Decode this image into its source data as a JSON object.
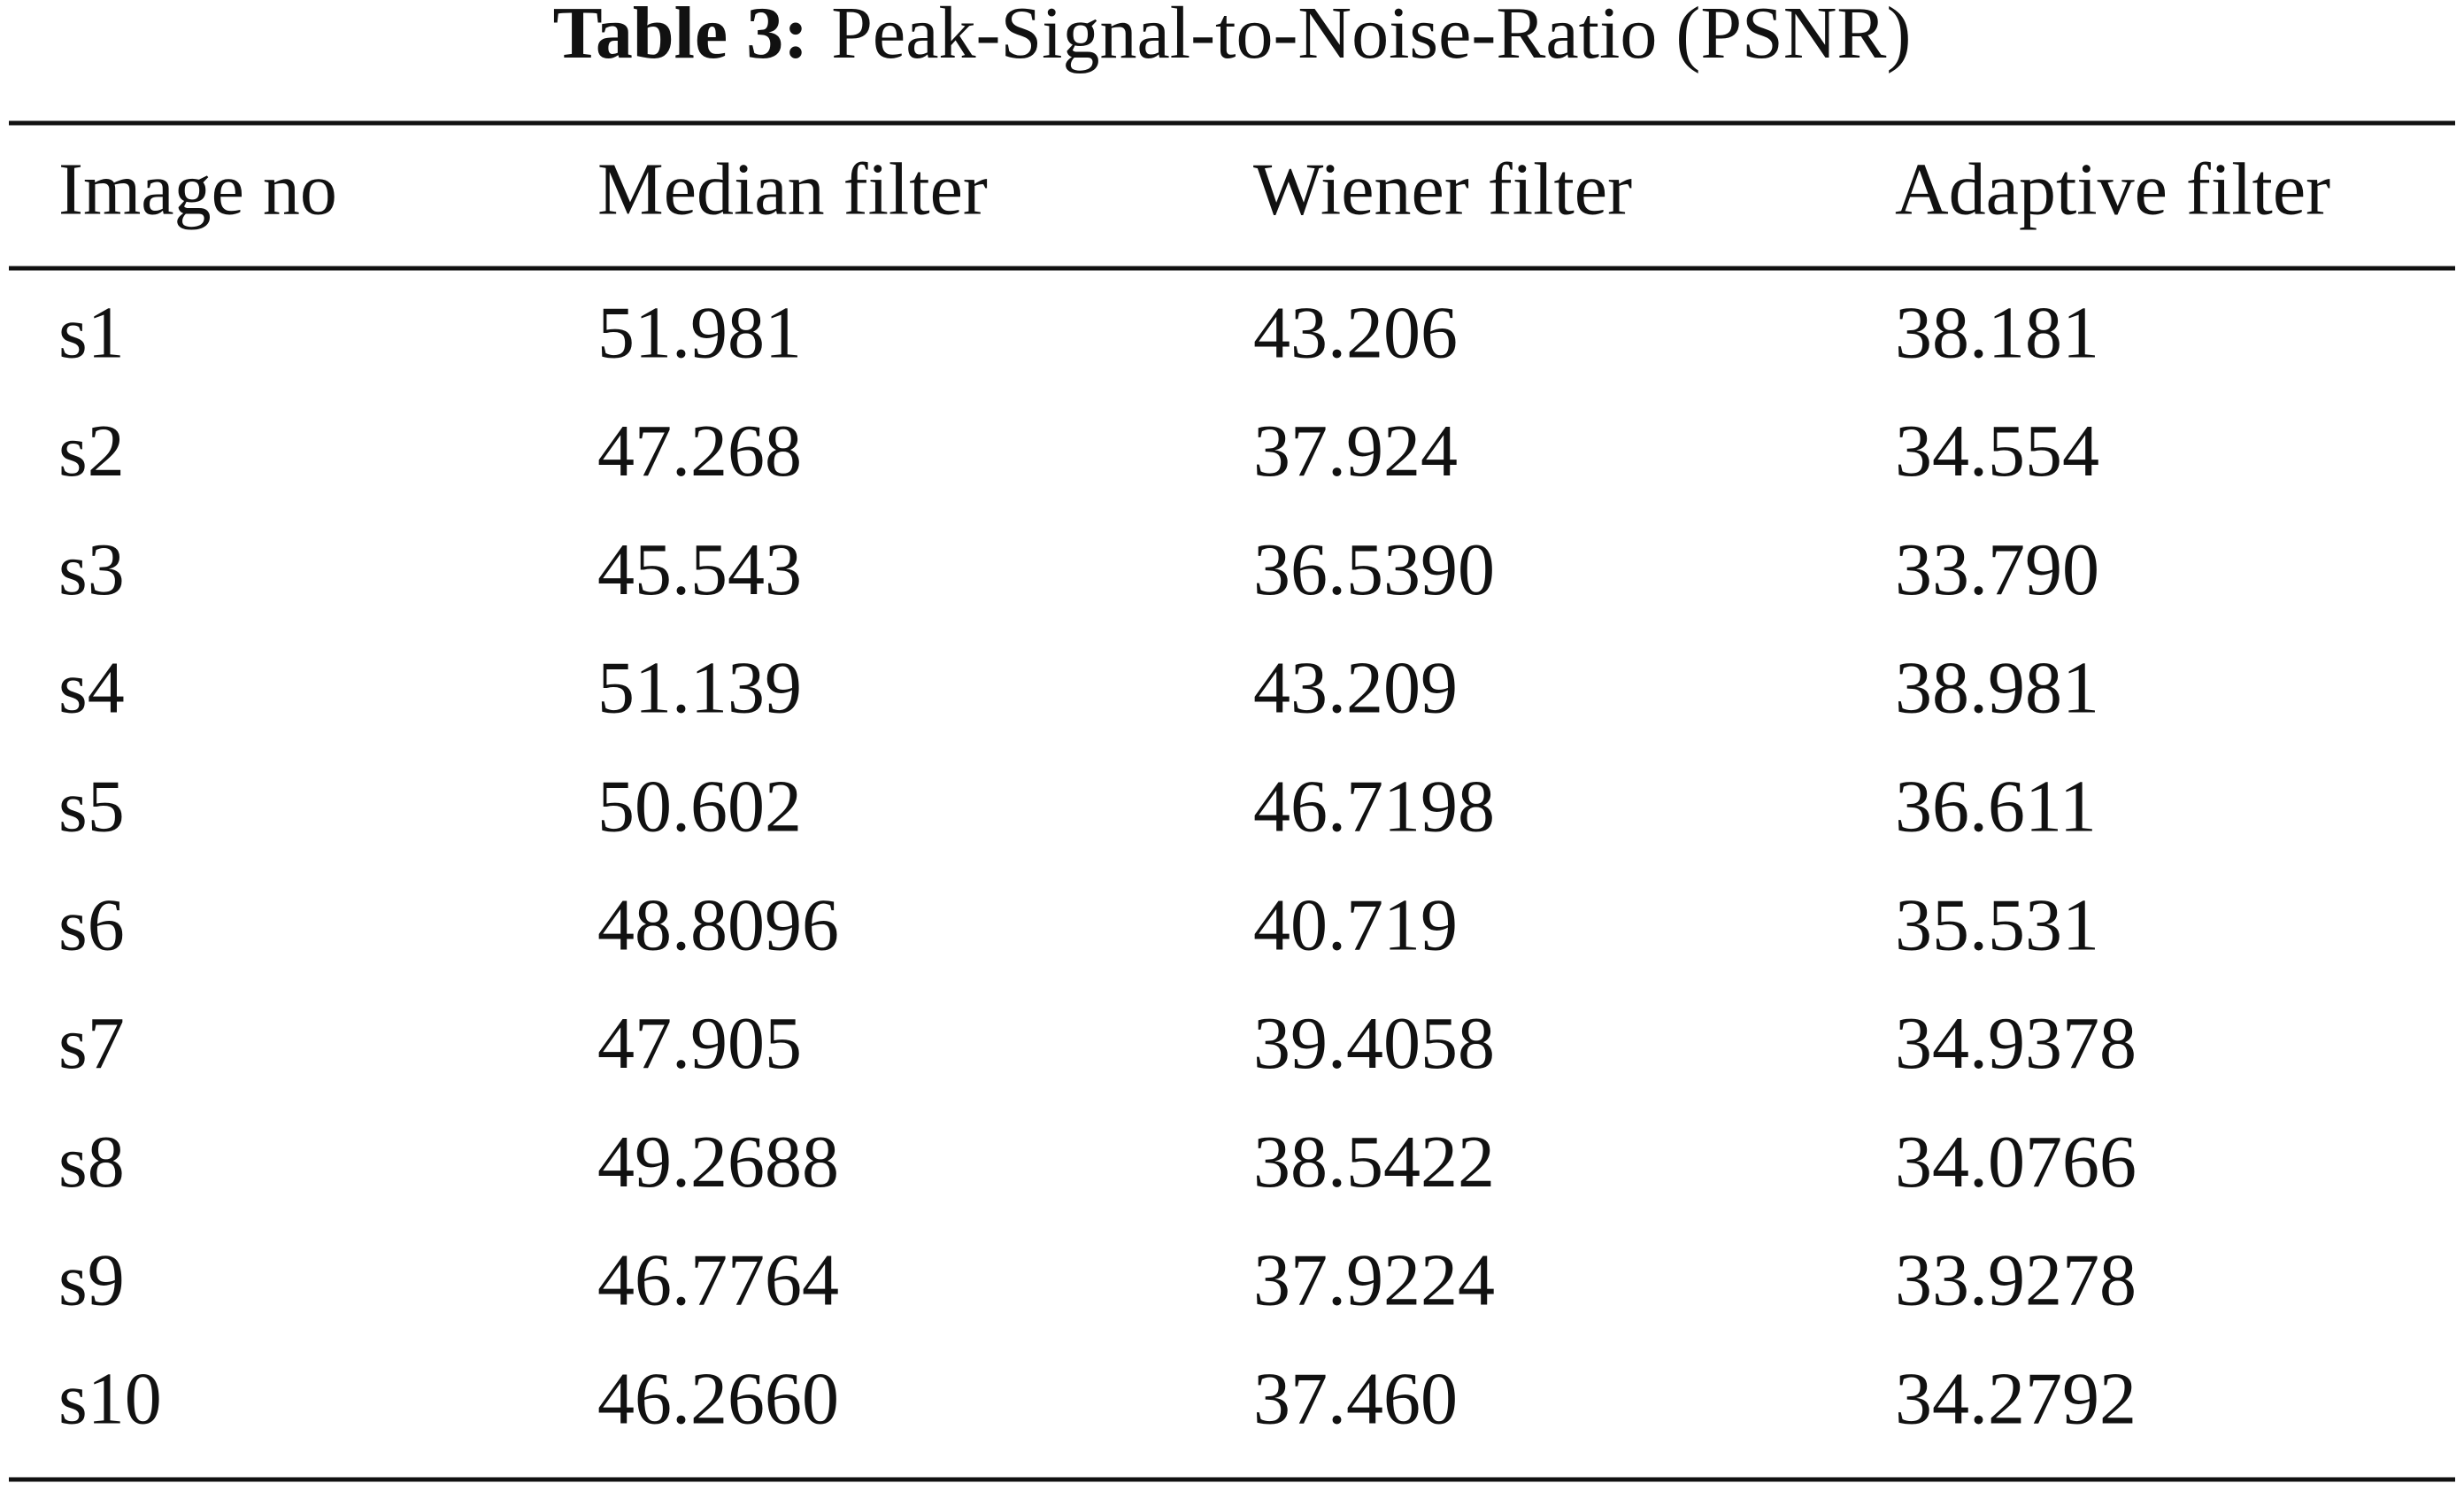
{
  "caption": {
    "label": "Table 3:",
    "title": "Peak-Signal-to-Noise-Ratio (PSNR)"
  },
  "table": {
    "header": [
      "Image no",
      "Median filter",
      "Wiener filter",
      "Adaptive filter"
    ],
    "rows": [
      [
        "s1",
        "51.981",
        "43.206",
        "38.181"
      ],
      [
        "s2",
        "47.268",
        "37.924",
        "34.554"
      ],
      [
        "s3",
        "45.543",
        "36.5390",
        "33.790"
      ],
      [
        "s4",
        "51.139",
        "43.209",
        "38.981"
      ],
      [
        "s5",
        "50.602",
        "46.7198",
        "36.611"
      ],
      [
        "s6",
        "48.8096",
        "40.719",
        "35.531"
      ],
      [
        "s7",
        "47.905",
        "39.4058",
        "34.9378"
      ],
      [
        "s8",
        "49.2688",
        "38.5422",
        "34.0766"
      ],
      [
        "s9",
        "46.7764",
        "37.9224",
        "33.9278"
      ],
      [
        "s10",
        "46.2660",
        "37.460",
        "34.2792"
      ]
    ]
  }
}
